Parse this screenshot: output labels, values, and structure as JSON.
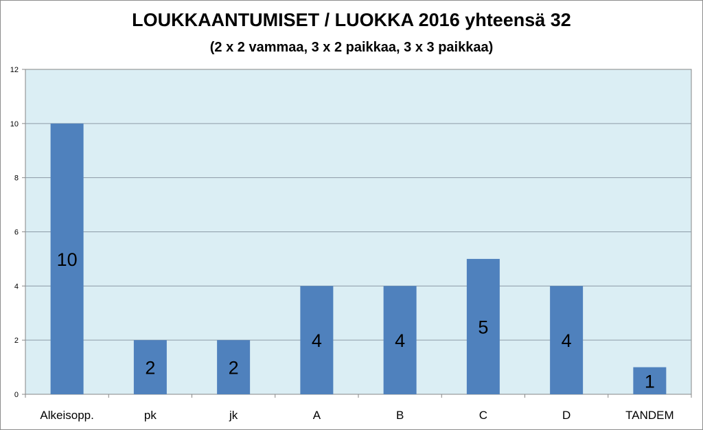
{
  "chart_data": {
    "type": "bar",
    "title": "LOUKKAANTUMISET / LUOKKA 2016 yhteensä 32",
    "subtitle": "(2 x 2 vammaa, 3 x 2 paikkaa, 3 x 3 paikkaa)",
    "categories": [
      "Alkeisopp.",
      "pk",
      "jk",
      "A",
      "B",
      "C",
      "D",
      "TANDEM"
    ],
    "values": [
      10,
      2,
      2,
      4,
      4,
      5,
      4,
      1
    ],
    "ylim": [
      0,
      12
    ],
    "yticks": [
      0,
      2,
      4,
      6,
      8,
      10,
      12
    ],
    "grid": true,
    "legend": "none",
    "colors": {
      "bar": "#4f81bd",
      "plot_background": "#dbeef4",
      "gridline": "#8c9aa6",
      "axis": "#868686"
    }
  }
}
